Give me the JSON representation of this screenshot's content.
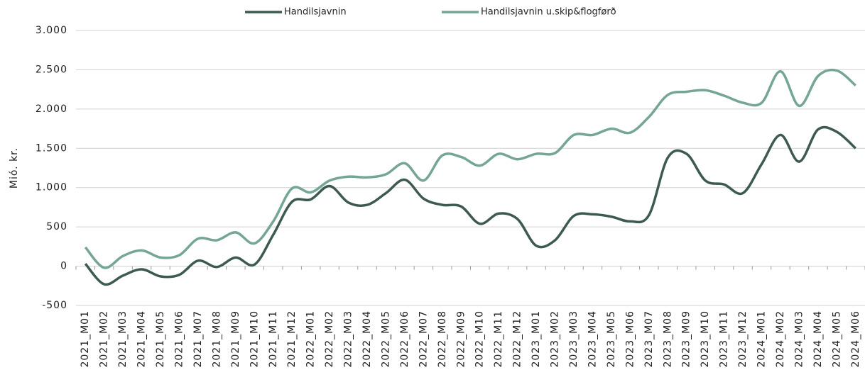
{
  "chart_data": {
    "type": "line",
    "ylabel": "Mió. kr.",
    "categories": [
      "2021_M01",
      "2021_M02",
      "2021_M03",
      "2021_M04",
      "2021_M05",
      "2021_M06",
      "2021_M07",
      "2021_M08",
      "2021_M09",
      "2021_M10",
      "2021_M11",
      "2021_M12",
      "2022_M01",
      "2022_M02",
      "2022_M03",
      "2022_M04",
      "2022_M05",
      "2022_M06",
      "2022_M07",
      "2022_M08",
      "2022_M09",
      "2022_M10",
      "2022_M11",
      "2022_M12",
      "2023_M01",
      "2023_M02",
      "2023_M03",
      "2023_M04",
      "2023_M05",
      "2023_M06",
      "2023_M07",
      "2023_M08",
      "2023_M09",
      "2023_M10",
      "2023_M11",
      "2023_M12",
      "2024_M01",
      "2024_M02",
      "2024_M03",
      "2024_M04",
      "2024_M05",
      "2024_M06"
    ],
    "series": [
      {
        "name": "Handilsjavnin",
        "color": "#3d5a50",
        "values": [
          30,
          -230,
          -120,
          -40,
          -130,
          -110,
          70,
          -10,
          110,
          20,
          400,
          820,
          850,
          1020,
          810,
          780,
          930,
          1100,
          860,
          780,
          760,
          540,
          670,
          600,
          260,
          330,
          640,
          660,
          630,
          570,
          650,
          1380,
          1430,
          1090,
          1040,
          930,
          1300,
          1670,
          1330,
          1740,
          1710,
          1500
        ]
      },
      {
        "name": "Handilsjavnin u.skip&flogførð",
        "color": "#74a595",
        "values": [
          240,
          -20,
          130,
          200,
          110,
          140,
          350,
          330,
          430,
          290,
          570,
          990,
          940,
          1090,
          1140,
          1130,
          1170,
          1310,
          1090,
          1410,
          1390,
          1280,
          1430,
          1360,
          1430,
          1440,
          1670,
          1670,
          1750,
          1700,
          1900,
          2180,
          2220,
          2240,
          2170,
          2080,
          2080,
          2480,
          2040,
          2420,
          2490,
          2300
        ]
      }
    ],
    "ylim": [
      -500,
      3000
    ],
    "yticks": [
      -500,
      0,
      500,
      {
        "value": 1000,
        "label": "1.000"
      },
      {
        "value": 1500,
        "label": "1.500"
      },
      {
        "value": 2000,
        "label": "2.000"
      },
      {
        "value": 2500,
        "label": "2.500"
      },
      {
        "value": 3000,
        "label": "3.000"
      }
    ],
    "grid": true
  }
}
